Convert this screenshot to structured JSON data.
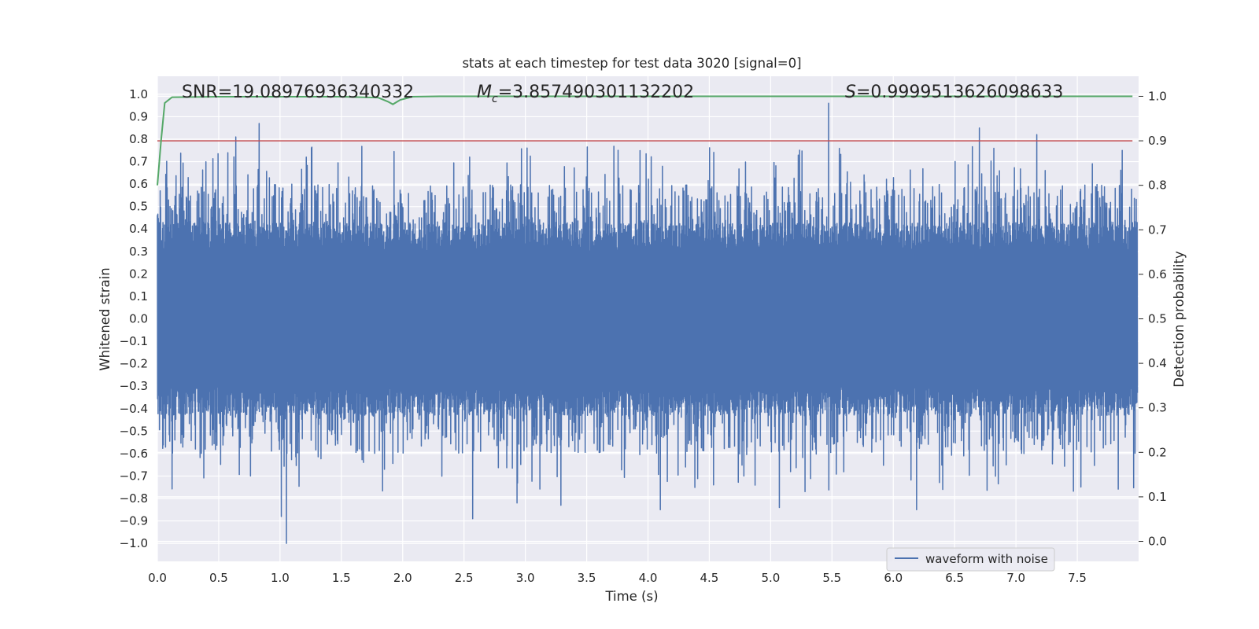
{
  "chart_data": {
    "type": "line",
    "title": "stats at each timestep for test data 3020 [signal=0]",
    "xlabel": "Time (s)",
    "ylabel": "Whitened strain",
    "y2label": "Detection probability",
    "xlim": [
      0.0,
      8.0
    ],
    "ylim": [
      -1.08,
      1.08
    ],
    "y2lim": [
      -0.045,
      1.045
    ],
    "xticks": [
      0.0,
      0.5,
      1.0,
      1.5,
      2.0,
      2.5,
      3.0,
      3.5,
      4.0,
      4.5,
      5.0,
      5.5,
      6.0,
      6.5,
      7.0,
      7.5
    ],
    "xtick_labels": [
      "0.0",
      "0.5",
      "1.0",
      "1.5",
      "2.0",
      "2.5",
      "3.0",
      "3.5",
      "4.0",
      "4.5",
      "5.0",
      "5.5",
      "6.0",
      "6.5",
      "7.0",
      "7.5"
    ],
    "yticks": [
      1.0,
      0.9,
      0.8,
      0.7,
      0.6,
      0.5,
      0.4,
      0.3,
      0.2,
      0.1,
      0.0,
      -0.1,
      -0.2,
      -0.3,
      -0.4,
      -0.5,
      -0.6,
      -0.7,
      -0.8,
      -0.9,
      -1.0
    ],
    "ytick_labels": [
      "1.0",
      "0.9",
      "0.8",
      "0.7",
      "0.6",
      "0.5",
      "0.4",
      "0.3",
      "0.2",
      "0.1",
      "0.0",
      "−0.1",
      "−0.2",
      "−0.3",
      "−0.4",
      "−0.5",
      "−0.6",
      "−0.7",
      "−0.8",
      "−0.9",
      "−1.0"
    ],
    "y2ticks": [
      1.0,
      0.9,
      0.8,
      0.7,
      0.6,
      0.5,
      0.4,
      0.3,
      0.2,
      0.1,
      0.0
    ],
    "y2tick_labels": [
      "1.0",
      "0.9",
      "0.8",
      "0.7",
      "0.6",
      "0.5",
      "0.4",
      "0.3",
      "0.2",
      "0.1",
      "0.0"
    ],
    "grid": true,
    "legend_position": "lower-right",
    "annotations": {
      "snr": "SNR=19.08976936340332",
      "mc_symbol": "M",
      "mc_sub": "c",
      "mc_value": "=3.857490301132202",
      "s_symbol": "S",
      "s_value": "=0.9999513626098633"
    },
    "series": [
      {
        "name": "waveform with noise",
        "axis": "left",
        "color": "#4c72b0",
        "sampling": "8 s noise-dominated whitened strain, envelope roughly ±0.4 with spikes",
        "notable_peaks": [
          {
            "x": 0.83,
            "y": 0.87
          },
          {
            "x": 0.64,
            "y": 0.81
          },
          {
            "x": 5.47,
            "y": 0.96
          },
          {
            "x": 6.7,
            "y": 0.85
          },
          {
            "x": 7.17,
            "y": 0.82
          },
          {
            "x": 1.05,
            "y": -1.0
          },
          {
            "x": 1.01,
            "y": -0.88
          },
          {
            "x": 2.57,
            "y": -0.89
          },
          {
            "x": 4.1,
            "y": -0.85
          },
          {
            "x": 6.19,
            "y": -0.85
          },
          {
            "x": 5.07,
            "y": -0.84
          },
          {
            "x": 2.93,
            "y": -0.82
          },
          {
            "x": 3.29,
            "y": -0.83
          }
        ]
      },
      {
        "name": "",
        "axis": "right",
        "color": "#dd8452",
        "note": "detection threshold",
        "x": [
          0.0,
          7.95
        ],
        "y": [
          0.9,
          0.9
        ]
      },
      {
        "name": "",
        "axis": "right",
        "color": "#55a868",
        "note": "detection probability",
        "x": [
          0.0,
          0.03,
          0.06,
          0.12,
          0.5,
          1.0,
          1.5,
          1.8,
          1.88,
          1.92,
          1.98,
          2.08,
          2.3,
          3.0,
          4.0,
          5.0,
          6.0,
          7.0,
          7.95
        ],
        "y": [
          0.8,
          0.9,
          0.985,
          0.998,
          0.999,
          0.999,
          0.999,
          0.997,
          0.988,
          0.982,
          0.992,
          0.999,
          1.0,
          1.0,
          1.0,
          1.0,
          1.0,
          1.0,
          1.0
        ]
      }
    ]
  }
}
